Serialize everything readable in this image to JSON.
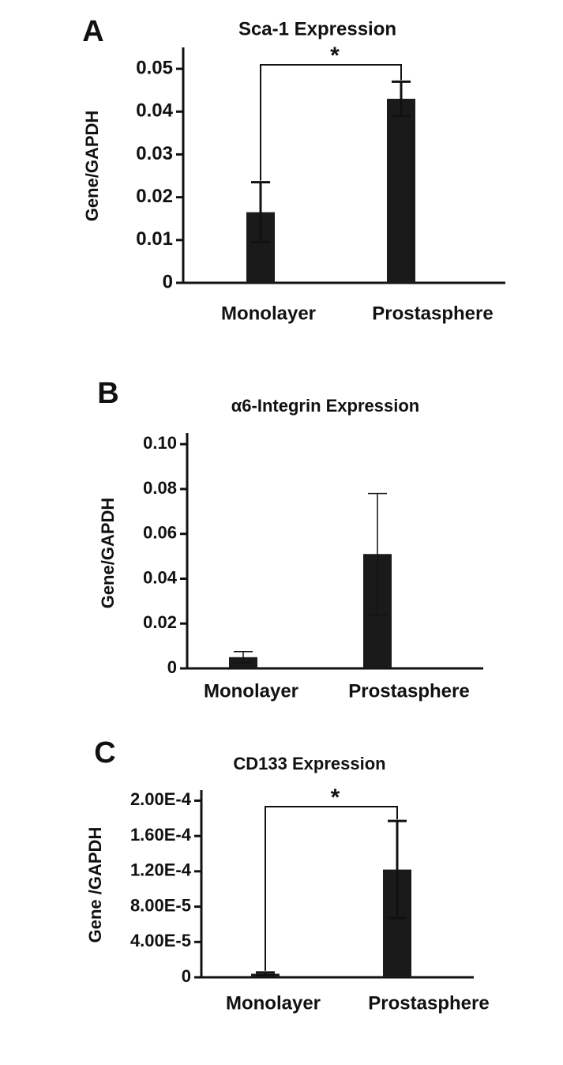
{
  "chart_data": [
    {
      "type": "bar",
      "panel": "A",
      "title": "Sca-1 Expression",
      "ylabel": "Gene/GAPDH",
      "categories": [
        "Monolayer",
        "Prostasphere"
      ],
      "values": [
        0.0165,
        0.043
      ],
      "errors": [
        0.007,
        0.004
      ],
      "color": "#1a1a1a",
      "ylim": [
        0,
        0.055
      ],
      "yticks": [
        0,
        0.01,
        0.02,
        0.03,
        0.04,
        0.05
      ],
      "significance": "*"
    },
    {
      "type": "bar",
      "panel": "B",
      "title": "α6-Integrin Expression",
      "ylabel": "Gene/GAPDH",
      "categories": [
        "Monolayer",
        "Prostasphere"
      ],
      "values": [
        0.005,
        0.051
      ],
      "errors": [
        0.0025,
        0.027
      ],
      "color": "#1a1a1a",
      "ylim": [
        0,
        0.105
      ],
      "yticks": [
        0,
        0.02,
        0.04,
        0.06,
        0.08,
        {
          "value": 0.1,
          "label": "0.10"
        }
      ]
    },
    {
      "type": "bar",
      "panel": "C",
      "title": "CD133 Expression",
      "ylabel": "Gene /GAPDH",
      "categories": [
        "Monolayer",
        "Prostasphere"
      ],
      "values": [
        4e-06,
        0.000122
      ],
      "errors": [
        1.5e-06,
        5.5e-05
      ],
      "color": "#1a1a1a",
      "ylim": [
        0,
        0.000212
      ],
      "yticks": [
        0,
        {
          "value": 4e-05,
          "label": "4.00E-5"
        },
        {
          "value": 8e-05,
          "label": "8.00E-5"
        },
        {
          "value": 0.00012,
          "label": "1.20E-4"
        },
        {
          "value": 0.00016,
          "label": "1.60E-4"
        },
        {
          "value": 0.0002,
          "label": "2.00E-4"
        }
      ],
      "significance": "*"
    }
  ]
}
